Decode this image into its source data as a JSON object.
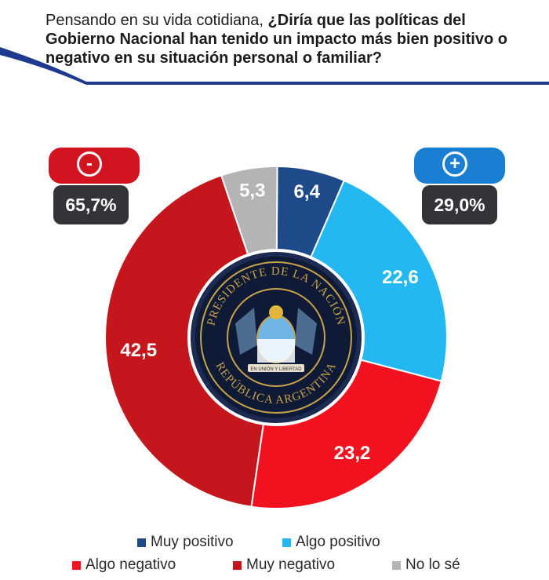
{
  "title": {
    "intro": "Pensando en su vida cotidiana, ",
    "question": "¿Diría que las políticas del Gobierno Nacional han tenido un impacto más bien positivo o negativo en su situación personal o familiar?"
  },
  "badges": {
    "negative": {
      "symbol": "-",
      "total": "65,7%",
      "color": "#d1141f"
    },
    "positive": {
      "symbol": "+",
      "total": "29,0%",
      "color": "#1a7fd3"
    }
  },
  "seal": {
    "text_top": "PRESIDENTE DE LA NACIÓN",
    "text_bottom": "REPÚBLICA ARGENTINA",
    "ribbon": "EN UNIÓN Y LIBERTAD"
  },
  "chart_data": {
    "type": "pie",
    "donut": true,
    "slices": [
      {
        "name": "Muy positivo",
        "value": 6.4,
        "label": "6,4",
        "color": "#1e4a8a"
      },
      {
        "name": "Algo positivo",
        "value": 22.6,
        "label": "22,6",
        "color": "#24b8f2"
      },
      {
        "name": "Algo negativo",
        "value": 23.2,
        "label": "23,2",
        "color": "#f2121f"
      },
      {
        "name": "Muy negativo",
        "value": 42.5,
        "label": "42,5",
        "color": "#c4161c"
      },
      {
        "name": "No lo sé",
        "value": 5.3,
        "label": "5,3",
        "color": "#b4b4b4"
      }
    ],
    "legend": [
      {
        "label": "Muy positivo",
        "color": "#1e4a8a"
      },
      {
        "label": "Algo positivo",
        "color": "#24b8f2"
      },
      {
        "label": "Algo negativo",
        "color": "#f2121f"
      },
      {
        "label": "Muy negativo",
        "color": "#c4161c"
      },
      {
        "label": "No lo sé",
        "color": "#b4b4b4"
      }
    ],
    "legend_position": "bottom"
  }
}
